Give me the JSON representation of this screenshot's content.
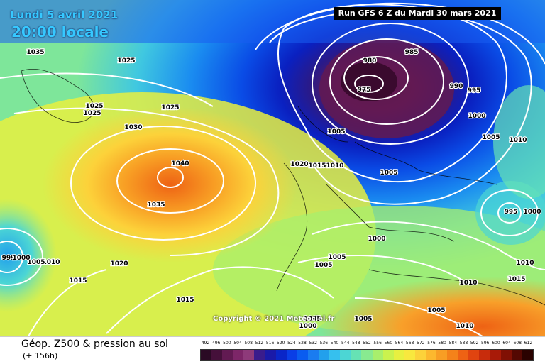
{
  "header": {
    "date": "Lundi 5 avril 2021",
    "time": "20:00 locale",
    "run": "Run GFS 6 Z du Mardi 30 mars 2021"
  },
  "copyright": "Copyright © 2021 Meteociel.fr",
  "footer": {
    "title": "Géop. Z500 & pression au sol",
    "subtitle": "(+ 156h)"
  },
  "legend": {
    "labels": [
      "492",
      "496",
      "500",
      "504",
      "508",
      "512",
      "516",
      "520",
      "524",
      "528",
      "532",
      "536",
      "540",
      "544",
      "548",
      "552",
      "556",
      "560",
      "564",
      "568",
      "572",
      "576",
      "580",
      "584",
      "588",
      "592",
      "596",
      "600",
      "604",
      "608",
      "612"
    ],
    "colors": [
      "#2a0a24",
      "#45103a",
      "#621a52",
      "#7d2668",
      "#8e3a7a",
      "#3a1c8c",
      "#1a1aa8",
      "#0a26c8",
      "#0a3ee6",
      "#0a5cf0",
      "#1a7cf0",
      "#22a0ec",
      "#36c0ee",
      "#4cd6d4",
      "#66e2b4",
      "#88ea90",
      "#a8ef6c",
      "#caf24e",
      "#e8f040",
      "#f8e83e",
      "#fcd23a",
      "#fcb82e",
      "#f89e24",
      "#f4821a",
      "#ee6214",
      "#e04410",
      "#c82c0c",
      "#a81a08",
      "#801004",
      "#540802",
      "#2a0200"
    ]
  },
  "isobars": [
    "1035",
    "1025",
    "1025",
    "1025",
    "1025",
    "1030",
    "1040",
    "1035",
    "1020",
    "1015",
    "1010",
    "980",
    "975",
    "985",
    "990",
    "995",
    "1005",
    "1000",
    "1005",
    "1010",
    "995",
    "1000",
    "1000",
    "1005",
    "1005",
    "1010",
    "1010",
    "1015",
    "1015",
    "1020",
    "1005",
    "1005",
    "1000",
    "1015",
    "1010",
    "1005",
    "1005",
    "999",
    "1000",
    "1005",
    "1010"
  ]
}
